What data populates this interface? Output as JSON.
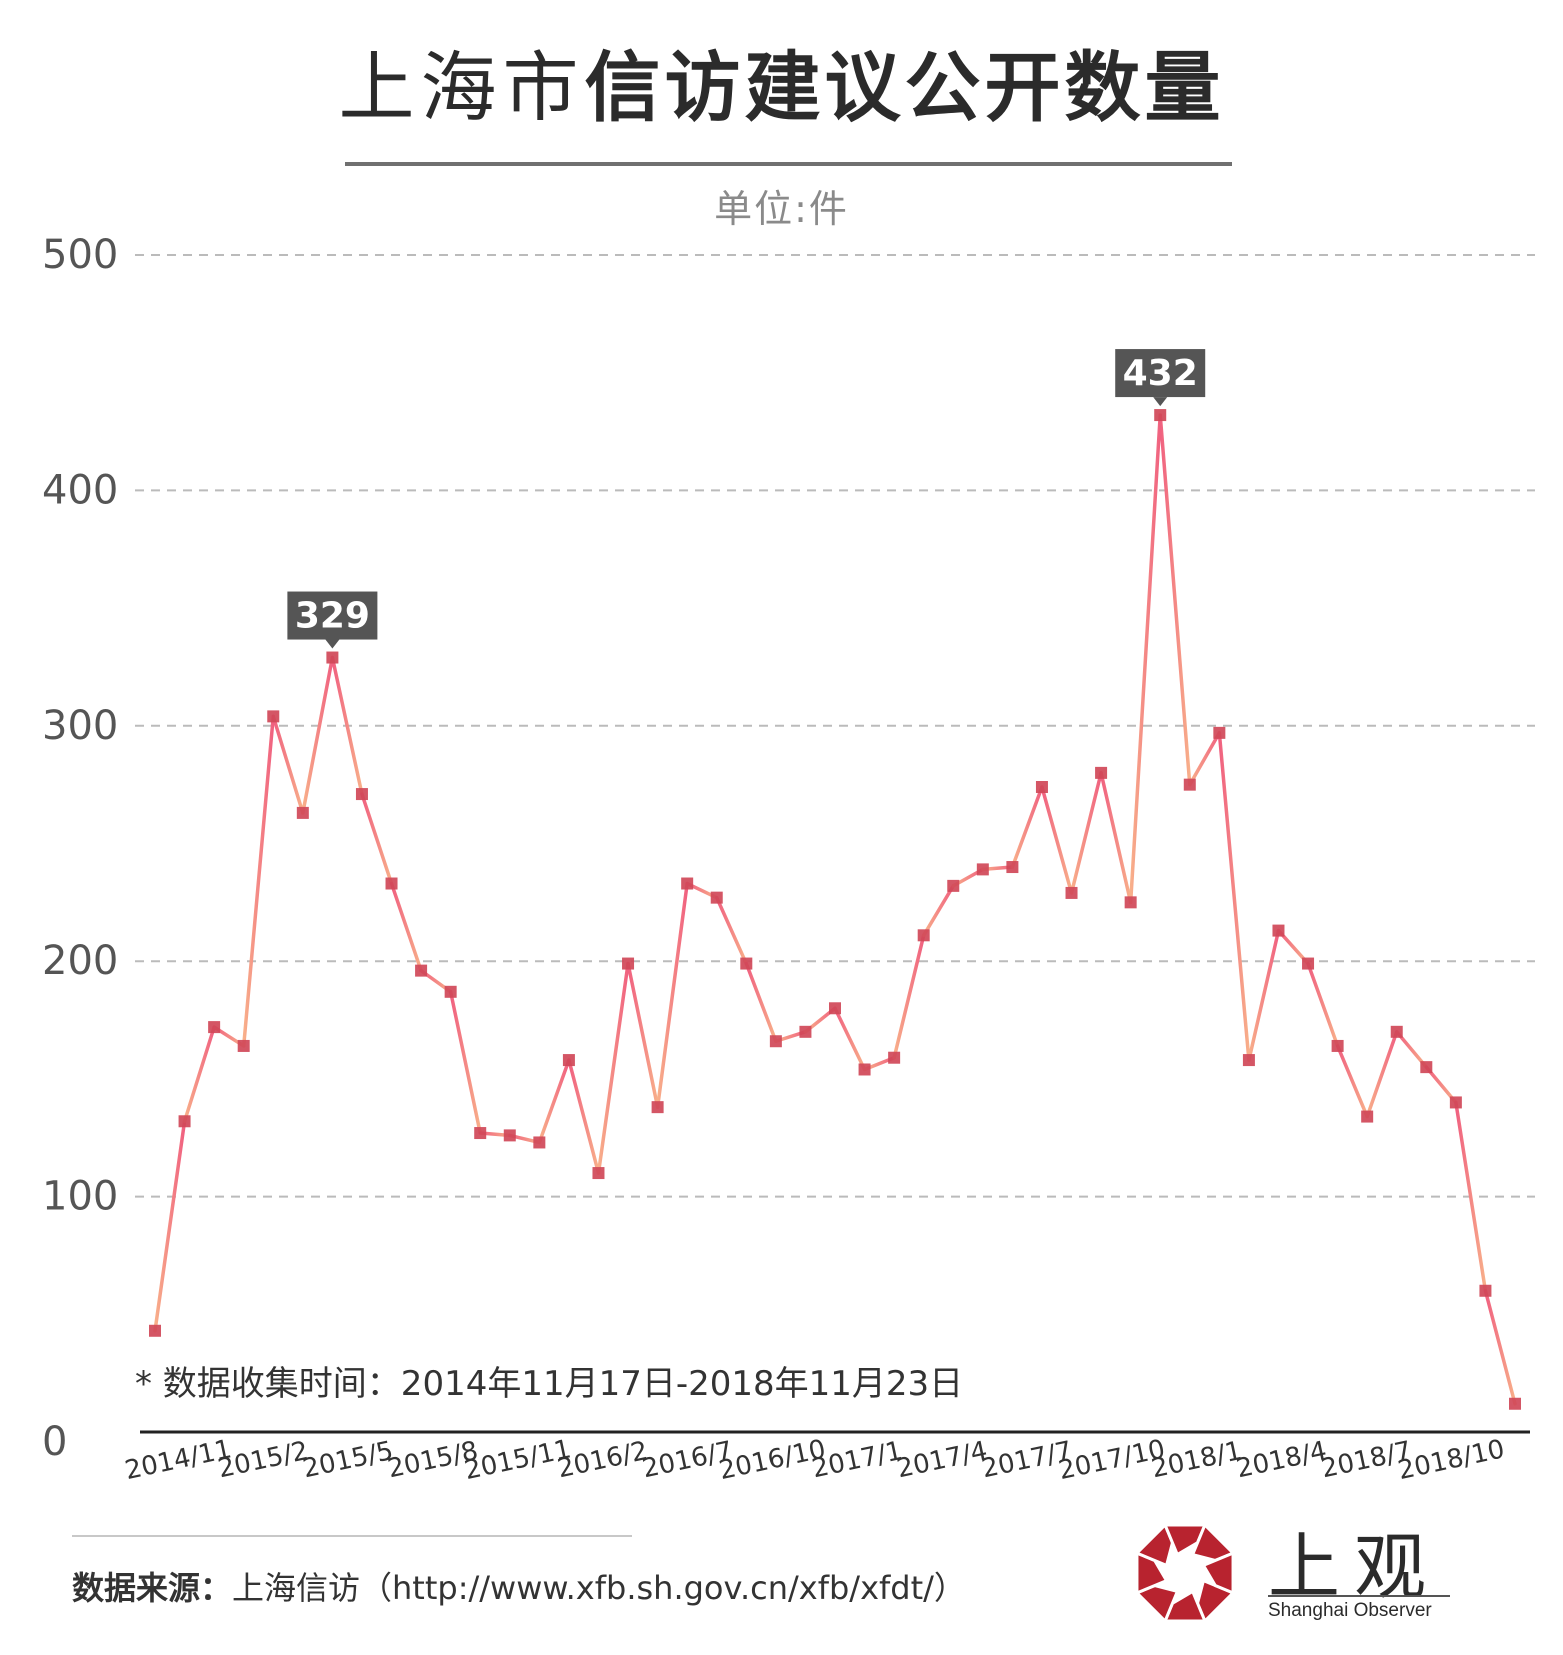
{
  "title": {
    "light": "上海市",
    "bold": "信访建议公开数量"
  },
  "unit": "单位:件",
  "note": "* 数据收集时间：2014年11月17日-2018年11月23日",
  "source": {
    "label": "数据来源：",
    "text": "上海信访（http://www.xfb.sh.gov.cn/xfb/xfdt/）"
  },
  "logo": {
    "text": "上观",
    "subtitle": "Shanghai Observer",
    "color": "#b8232f"
  },
  "chart_data": {
    "type": "line",
    "ylim": [
      0,
      500
    ],
    "yticks": [
      0,
      100,
      200,
      300,
      400,
      500
    ],
    "grid": true,
    "xtick_labels": [
      "2014/11",
      "2015/2",
      "2015/5",
      "2015/8",
      "2015/11",
      "2016/2",
      "2016/7",
      "2016/10",
      "2017/1",
      "2017/4",
      "2017/7",
      "2017/10",
      "2018/1",
      "2018/4",
      "2018/7",
      "2018/10"
    ],
    "values": [
      43,
      132,
      172,
      164,
      304,
      263,
      329,
      271,
      233,
      196,
      187,
      127,
      126,
      123,
      158,
      110,
      199,
      138,
      233,
      227,
      199,
      166,
      170,
      180,
      154,
      159,
      211,
      232,
      239,
      240,
      274,
      229,
      280,
      225,
      432,
      275,
      297,
      158,
      213,
      199,
      164,
      134,
      170,
      155,
      140,
      60,
      12
    ],
    "annotations": [
      {
        "index": 6,
        "label": "329"
      },
      {
        "index": 34,
        "label": "432"
      }
    ],
    "colors": {
      "line_a": "#f06080",
      "line_b": "#f8b08a",
      "marker": "#d04858",
      "grid": "#bbbbbb",
      "callout": "#555555"
    }
  }
}
